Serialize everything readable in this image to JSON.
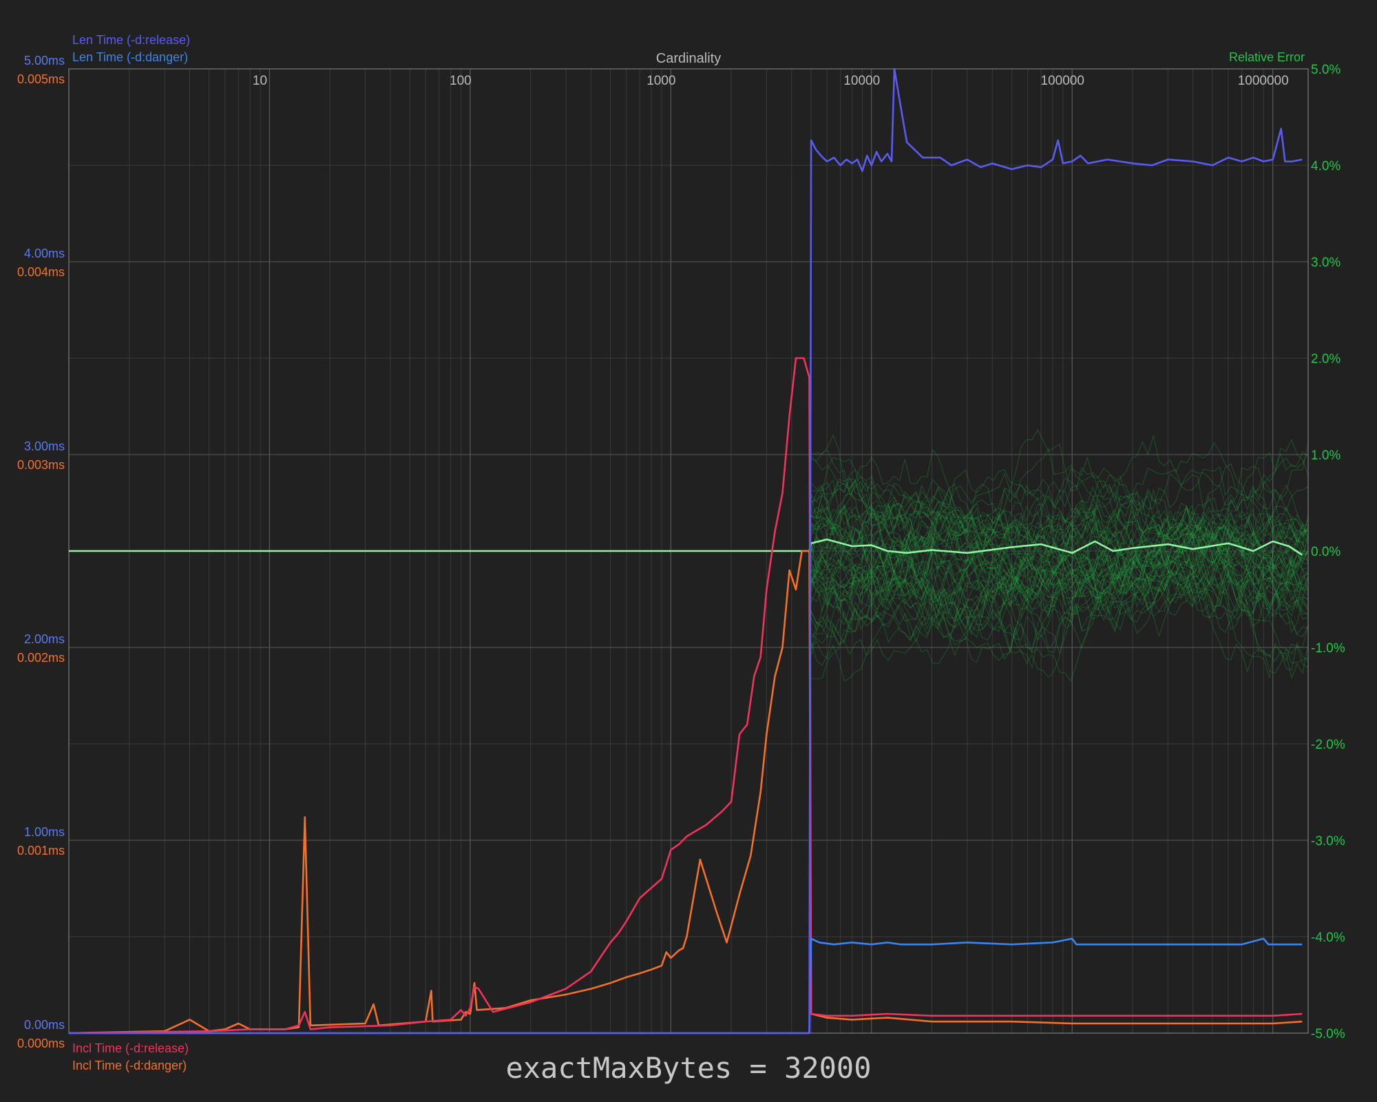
{
  "chart_data": {
    "type": "line",
    "title": "Cardinality",
    "footer_title": "exactMaxBytes = 32000",
    "x_scale": "log",
    "x_range": [
      1,
      1500000
    ],
    "x_ticks": [
      "10",
      "100",
      "1000",
      "10000",
      "100000",
      "1000000"
    ],
    "left_axis": {
      "len_time_ticks": [
        "0.00ms",
        "1.00ms",
        "2.00ms",
        "3.00ms",
        "4.00ms",
        "5.00ms"
      ],
      "incl_time_ticks": [
        "0.000ms",
        "0.001ms",
        "0.002ms",
        "0.003ms",
        "0.004ms",
        "0.005ms"
      ],
      "len_time_range_ms": [
        0,
        5
      ],
      "incl_time_range_ms": [
        0,
        0.005
      ]
    },
    "right_axis": {
      "label": "Relative Error",
      "ticks": [
        "-5.0%",
        "-4.0%",
        "-3.0%",
        "-2.0%",
        "-1.0%",
        "0.0%",
        "1.0%",
        "2.0%",
        "3.0%",
        "4.0%",
        "5.0%"
      ],
      "range_pct": [
        -5,
        5
      ]
    },
    "legend": {
      "top": [
        "Len Time (-d:release)",
        "Len Time (-d:danger)"
      ],
      "bottom": [
        "Incl Time (-d:release)",
        "Incl Time (-d:danger)"
      ]
    },
    "grid": true,
    "colors": {
      "background": "#212121",
      "grid": "#555555",
      "len_release": "#5a5cf0",
      "len_danger": "#3a86f0",
      "incl_release": "#f0335f",
      "incl_danger": "#f4712a",
      "rel_error": "#8ef5a0",
      "rel_error_trials": "#1ec74a",
      "tick_text": "#bbbbbb",
      "footer_text": "#c8c8c8"
    },
    "series": [
      {
        "name": "Len Time (-d:release)",
        "axis": "len_ms",
        "points": [
          [
            1,
            0
          ],
          [
            4000,
            0
          ],
          [
            4900,
            0
          ],
          [
            5000,
            4.63
          ],
          [
            5300,
            4.58
          ],
          [
            5600,
            4.55
          ],
          [
            6000,
            4.52
          ],
          [
            6500,
            4.54
          ],
          [
            7000,
            4.5
          ],
          [
            7500,
            4.53
          ],
          [
            8000,
            4.51
          ],
          [
            8500,
            4.53
          ],
          [
            9000,
            4.47
          ],
          [
            9500,
            4.55
          ],
          [
            10000,
            4.5
          ],
          [
            10600,
            4.57
          ],
          [
            11200,
            4.52
          ],
          [
            12000,
            4.56
          ],
          [
            12600,
            4.52
          ],
          [
            13000,
            5.0
          ],
          [
            14000,
            4.8
          ],
          [
            15000,
            4.62
          ],
          [
            18000,
            4.54
          ],
          [
            22000,
            4.54
          ],
          [
            25000,
            4.5
          ],
          [
            30000,
            4.53
          ],
          [
            35000,
            4.49
          ],
          [
            40000,
            4.51
          ],
          [
            50000,
            4.48
          ],
          [
            60000,
            4.5
          ],
          [
            70000,
            4.49
          ],
          [
            80000,
            4.53
          ],
          [
            85000,
            4.63
          ],
          [
            90000,
            4.51
          ],
          [
            100000,
            4.52
          ],
          [
            110000,
            4.55
          ],
          [
            120000,
            4.51
          ],
          [
            150000,
            4.53
          ],
          [
            200000,
            4.51
          ],
          [
            250000,
            4.5
          ],
          [
            300000,
            4.53
          ],
          [
            400000,
            4.52
          ],
          [
            500000,
            4.5
          ],
          [
            600000,
            4.54
          ],
          [
            700000,
            4.52
          ],
          [
            800000,
            4.54
          ],
          [
            900000,
            4.52
          ],
          [
            1000000,
            4.53
          ],
          [
            1100000,
            4.69
          ],
          [
            1150000,
            4.52
          ],
          [
            1250000,
            4.52
          ],
          [
            1400000,
            4.53
          ]
        ]
      },
      {
        "name": "Len Time (-d:danger)",
        "axis": "len_ms",
        "points": [
          [
            1,
            0
          ],
          [
            4000,
            0
          ],
          [
            4900,
            0
          ],
          [
            5000,
            0.49
          ],
          [
            5500,
            0.47
          ],
          [
            6500,
            0.46
          ],
          [
            8000,
            0.47
          ],
          [
            10000,
            0.46
          ],
          [
            12000,
            0.47
          ],
          [
            14000,
            0.46
          ],
          [
            20000,
            0.46
          ],
          [
            30000,
            0.47
          ],
          [
            50000,
            0.46
          ],
          [
            80000,
            0.47
          ],
          [
            100000,
            0.49
          ],
          [
            105000,
            0.46
          ],
          [
            120000,
            0.46
          ],
          [
            200000,
            0.46
          ],
          [
            400000,
            0.46
          ],
          [
            700000,
            0.46
          ],
          [
            900000,
            0.49
          ],
          [
            950000,
            0.46
          ],
          [
            1100000,
            0.46
          ],
          [
            1400000,
            0.46
          ]
        ]
      },
      {
        "name": "Incl Time (-d:release)",
        "axis": "incl_ms",
        "points": [
          [
            1,
            0
          ],
          [
            5,
            1e-05
          ],
          [
            8,
            2e-05
          ],
          [
            12,
            2e-05
          ],
          [
            14,
            4e-05
          ],
          [
            15,
            0.00011
          ],
          [
            16,
            2e-05
          ],
          [
            20,
            3e-05
          ],
          [
            40,
            4e-05
          ],
          [
            60,
            6e-05
          ],
          [
            80,
            7e-05
          ],
          [
            90,
            0.00012
          ],
          [
            95,
            9e-05
          ],
          [
            100,
            0.00013
          ],
          [
            105,
            0.00024
          ],
          [
            110,
            0.00023
          ],
          [
            130,
            0.00011
          ],
          [
            200,
            0.00016
          ],
          [
            300,
            0.00023
          ],
          [
            400,
            0.00032
          ],
          [
            450,
            0.0004
          ],
          [
            500,
            0.00047
          ],
          [
            550,
            0.00052
          ],
          [
            600,
            0.00058
          ],
          [
            700,
            0.0007
          ],
          [
            900,
            0.0008
          ],
          [
            1000,
            0.00095
          ],
          [
            1100,
            0.00098
          ],
          [
            1200,
            0.00102
          ],
          [
            1500,
            0.00108
          ],
          [
            1800,
            0.00115
          ],
          [
            2000,
            0.0012
          ],
          [
            2200,
            0.00155
          ],
          [
            2400,
            0.0016
          ],
          [
            2600,
            0.00185
          ],
          [
            2800,
            0.00195
          ],
          [
            3000,
            0.0023
          ],
          [
            3300,
            0.0026
          ],
          [
            3600,
            0.0028
          ],
          [
            3900,
            0.0032
          ],
          [
            4200,
            0.0035
          ],
          [
            4600,
            0.0035
          ],
          [
            4900,
            0.0034
          ],
          [
            5000,
            0.0001
          ],
          [
            6000,
            9e-05
          ],
          [
            8000,
            9e-05
          ],
          [
            12000,
            0.0001
          ],
          [
            20000,
            9e-05
          ],
          [
            50000,
            9e-05
          ],
          [
            100000,
            9e-05
          ],
          [
            300000,
            9e-05
          ],
          [
            600000,
            9e-05
          ],
          [
            1000000,
            9e-05
          ],
          [
            1400000,
            0.0001
          ]
        ]
      },
      {
        "name": "Incl Time (-d:danger)",
        "axis": "incl_ms",
        "points": [
          [
            1,
            0
          ],
          [
            3,
            1e-05
          ],
          [
            4,
            7e-05
          ],
          [
            5,
            1e-05
          ],
          [
            6,
            2e-05
          ],
          [
            7,
            5e-05
          ],
          [
            8,
            2e-05
          ],
          [
            12,
            2e-05
          ],
          [
            14,
            3e-05
          ],
          [
            15,
            0.00112
          ],
          [
            16,
            4e-05
          ],
          [
            30,
            5e-05
          ],
          [
            33,
            0.00015
          ],
          [
            35,
            4e-05
          ],
          [
            60,
            6e-05
          ],
          [
            64,
            0.00022
          ],
          [
            65,
            6e-05
          ],
          [
            90,
            7e-05
          ],
          [
            95,
            0.00011
          ],
          [
            100,
            0.0001
          ],
          [
            105,
            0.00026
          ],
          [
            108,
            0.00012
          ],
          [
            150,
            0.00013
          ],
          [
            200,
            0.00017
          ],
          [
            300,
            0.0002
          ],
          [
            400,
            0.00023
          ],
          [
            500,
            0.00026
          ],
          [
            600,
            0.00029
          ],
          [
            700,
            0.00031
          ],
          [
            800,
            0.00033
          ],
          [
            900,
            0.00035
          ],
          [
            950,
            0.00042
          ],
          [
            1000,
            0.00039
          ],
          [
            1100,
            0.00043
          ],
          [
            1150,
            0.00044
          ],
          [
            1200,
            0.0005
          ],
          [
            1400,
            0.0009
          ],
          [
            1500,
            0.0008
          ],
          [
            1700,
            0.00062
          ],
          [
            1900,
            0.00047
          ],
          [
            2200,
            0.00072
          ],
          [
            2500,
            0.00092
          ],
          [
            2800,
            0.00125
          ],
          [
            3000,
            0.00155
          ],
          [
            3300,
            0.00185
          ],
          [
            3600,
            0.002
          ],
          [
            3900,
            0.0024
          ],
          [
            4200,
            0.0023
          ],
          [
            4500,
            0.0025
          ],
          [
            4900,
            0.0025
          ],
          [
            5000,
            0.0001
          ],
          [
            6000,
            8e-05
          ],
          [
            8000,
            7e-05
          ],
          [
            12000,
            8e-05
          ],
          [
            20000,
            6e-05
          ],
          [
            50000,
            6e-05
          ],
          [
            100000,
            5e-05
          ],
          [
            300000,
            5e-05
          ],
          [
            600000,
            5e-05
          ],
          [
            1000000,
            5e-05
          ],
          [
            1400000,
            6e-05
          ]
        ]
      },
      {
        "name": "Relative Error",
        "axis": "rel_pct",
        "points": [
          [
            1,
            0
          ],
          [
            4900,
            0
          ],
          [
            5000,
            0.08
          ],
          [
            6000,
            0.12
          ],
          [
            8000,
            0.05
          ],
          [
            10000,
            0.06
          ],
          [
            12000,
            0.0
          ],
          [
            15000,
            -0.02
          ],
          [
            20000,
            0.01
          ],
          [
            30000,
            -0.02
          ],
          [
            50000,
            0.04
          ],
          [
            70000,
            0.07
          ],
          [
            100000,
            -0.02
          ],
          [
            130000,
            0.1
          ],
          [
            160000,
            0.0
          ],
          [
            200000,
            0.03
          ],
          [
            300000,
            0.07
          ],
          [
            400000,
            0.02
          ],
          [
            600000,
            0.08
          ],
          [
            800000,
            0.0
          ],
          [
            1000000,
            0.1
          ],
          [
            1200000,
            0.05
          ],
          [
            1400000,
            -0.04
          ]
        ]
      }
    ],
    "rel_error_trials": {
      "x_range": [
        5000,
        1500000
      ],
      "approx_spread_pct": 1.3,
      "envelope_pct": [
        -2.5,
        2.4
      ]
    }
  }
}
